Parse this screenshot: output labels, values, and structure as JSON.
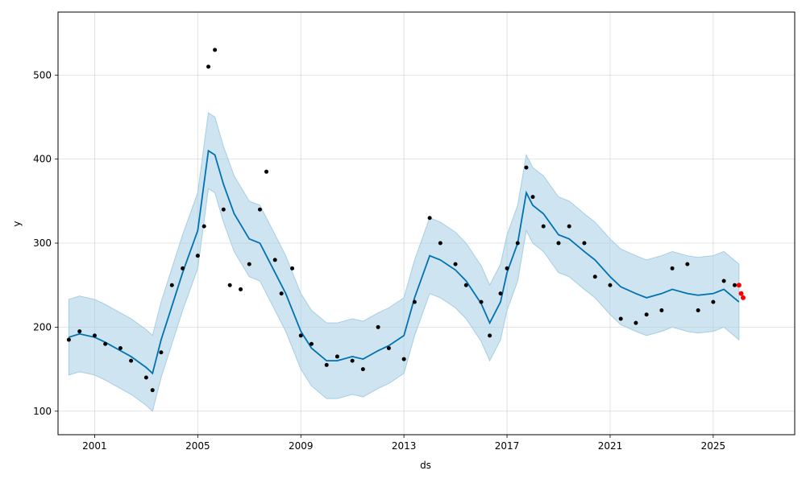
{
  "chart_data": {
    "type": "line",
    "title": "",
    "xlabel": "ds",
    "ylabel": "y",
    "x_ticks": [
      "2001",
      "2005",
      "2009",
      "2013",
      "2017",
      "2021",
      "2025"
    ],
    "y_ticks": [
      100,
      200,
      300,
      400,
      500
    ],
    "xlim": [
      "1999-08-01",
      "2028-03-01"
    ],
    "ylim": [
      72,
      575
    ],
    "grid": true,
    "series": [
      {
        "role": "forecast",
        "color": "#0072B2",
        "points": [
          [
            "2000-01-01",
            188
          ],
          [
            "2000-06-01",
            192
          ],
          [
            "2001-01-01",
            188
          ],
          [
            "2001-06-01",
            182
          ],
          [
            "2002-01-01",
            172
          ],
          [
            "2002-06-01",
            165
          ],
          [
            "2003-01-01",
            152
          ],
          [
            "2003-04-01",
            145
          ],
          [
            "2003-08-01",
            185
          ],
          [
            "2004-01-01",
            225
          ],
          [
            "2004-06-01",
            265
          ],
          [
            "2005-01-01",
            315
          ],
          [
            "2005-06-01",
            410
          ],
          [
            "2005-09-01",
            405
          ],
          [
            "2006-01-01",
            370
          ],
          [
            "2006-06-01",
            335
          ],
          [
            "2007-01-01",
            305
          ],
          [
            "2007-06-01",
            300
          ],
          [
            "2008-01-01",
            265
          ],
          [
            "2008-06-01",
            240
          ],
          [
            "2009-01-01",
            195
          ],
          [
            "2009-06-01",
            175
          ],
          [
            "2010-01-01",
            160
          ],
          [
            "2010-06-01",
            160
          ],
          [
            "2011-01-01",
            165
          ],
          [
            "2011-06-01",
            162
          ],
          [
            "2012-01-01",
            172
          ],
          [
            "2012-06-01",
            178
          ],
          [
            "2013-01-01",
            190
          ],
          [
            "2013-06-01",
            235
          ],
          [
            "2014-01-01",
            285
          ],
          [
            "2014-06-01",
            280
          ],
          [
            "2015-01-01",
            268
          ],
          [
            "2015-06-01",
            255
          ],
          [
            "2016-01-01",
            228
          ],
          [
            "2016-05-01",
            205
          ],
          [
            "2016-10-01",
            230
          ],
          [
            "2017-01-01",
            265
          ],
          [
            "2017-06-01",
            300
          ],
          [
            "2017-10-01",
            360
          ],
          [
            "2018-01-01",
            345
          ],
          [
            "2018-06-01",
            335
          ],
          [
            "2019-01-01",
            310
          ],
          [
            "2019-06-01",
            305
          ],
          [
            "2020-01-01",
            290
          ],
          [
            "2020-06-01",
            280
          ],
          [
            "2021-01-01",
            260
          ],
          [
            "2021-06-01",
            248
          ],
          [
            "2022-01-01",
            240
          ],
          [
            "2022-06-01",
            235
          ],
          [
            "2023-01-01",
            240
          ],
          [
            "2023-06-01",
            245
          ],
          [
            "2024-01-01",
            240
          ],
          [
            "2024-06-01",
            238
          ],
          [
            "2025-01-01",
            240
          ],
          [
            "2025-06-01",
            245
          ],
          [
            "2026-01-01",
            230
          ]
        ]
      },
      {
        "role": "uncertainty-interval",
        "color": "#a6cee3",
        "half_width": 45
      },
      {
        "role": "observed",
        "color": "#000000",
        "points": [
          [
            "2000-01-01",
            185
          ],
          [
            "2000-06-01",
            195
          ],
          [
            "2001-01-01",
            190
          ],
          [
            "2001-06-01",
            180
          ],
          [
            "2002-01-01",
            175
          ],
          [
            "2002-06-01",
            160
          ],
          [
            "2003-01-01",
            140
          ],
          [
            "2003-04-01",
            125
          ],
          [
            "2003-08-01",
            170
          ],
          [
            "2004-01-01",
            250
          ],
          [
            "2004-06-01",
            270
          ],
          [
            "2005-01-01",
            285
          ],
          [
            "2005-04-01",
            320
          ],
          [
            "2005-06-01",
            510
          ],
          [
            "2005-09-01",
            530
          ],
          [
            "2006-01-01",
            340
          ],
          [
            "2006-04-01",
            250
          ],
          [
            "2006-09-01",
            245
          ],
          [
            "2007-01-01",
            275
          ],
          [
            "2007-06-01",
            340
          ],
          [
            "2007-09-01",
            385
          ],
          [
            "2008-01-01",
            280
          ],
          [
            "2008-04-01",
            240
          ],
          [
            "2008-09-01",
            270
          ],
          [
            "2009-01-01",
            190
          ],
          [
            "2009-06-01",
            180
          ],
          [
            "2010-01-01",
            155
          ],
          [
            "2010-06-01",
            165
          ],
          [
            "2011-01-01",
            160
          ],
          [
            "2011-06-01",
            150
          ],
          [
            "2012-01-01",
            200
          ],
          [
            "2012-06-01",
            175
          ],
          [
            "2013-01-01",
            162
          ],
          [
            "2013-06-01",
            230
          ],
          [
            "2014-01-01",
            330
          ],
          [
            "2014-06-01",
            300
          ],
          [
            "2015-01-01",
            275
          ],
          [
            "2015-06-01",
            250
          ],
          [
            "2016-01-01",
            230
          ],
          [
            "2016-05-01",
            190
          ],
          [
            "2016-10-01",
            240
          ],
          [
            "2017-01-01",
            270
          ],
          [
            "2017-06-01",
            300
          ],
          [
            "2017-10-01",
            390
          ],
          [
            "2018-01-01",
            355
          ],
          [
            "2018-06-01",
            320
          ],
          [
            "2019-01-01",
            300
          ],
          [
            "2019-06-01",
            320
          ],
          [
            "2020-01-01",
            300
          ],
          [
            "2020-06-01",
            260
          ],
          [
            "2021-01-01",
            250
          ],
          [
            "2021-06-01",
            210
          ],
          [
            "2022-01-01",
            205
          ],
          [
            "2022-06-01",
            215
          ],
          [
            "2023-01-01",
            220
          ],
          [
            "2023-06-01",
            270
          ],
          [
            "2024-01-01",
            275
          ],
          [
            "2024-06-01",
            220
          ],
          [
            "2025-01-01",
            230
          ],
          [
            "2025-06-01",
            255
          ],
          [
            "2025-11-01",
            250
          ]
        ]
      },
      {
        "role": "highlighted-recent",
        "color": "#ff0000",
        "points": [
          [
            "2026-01-01",
            250
          ],
          [
            "2026-02-01",
            240
          ],
          [
            "2026-03-01",
            235
          ]
        ]
      }
    ]
  }
}
